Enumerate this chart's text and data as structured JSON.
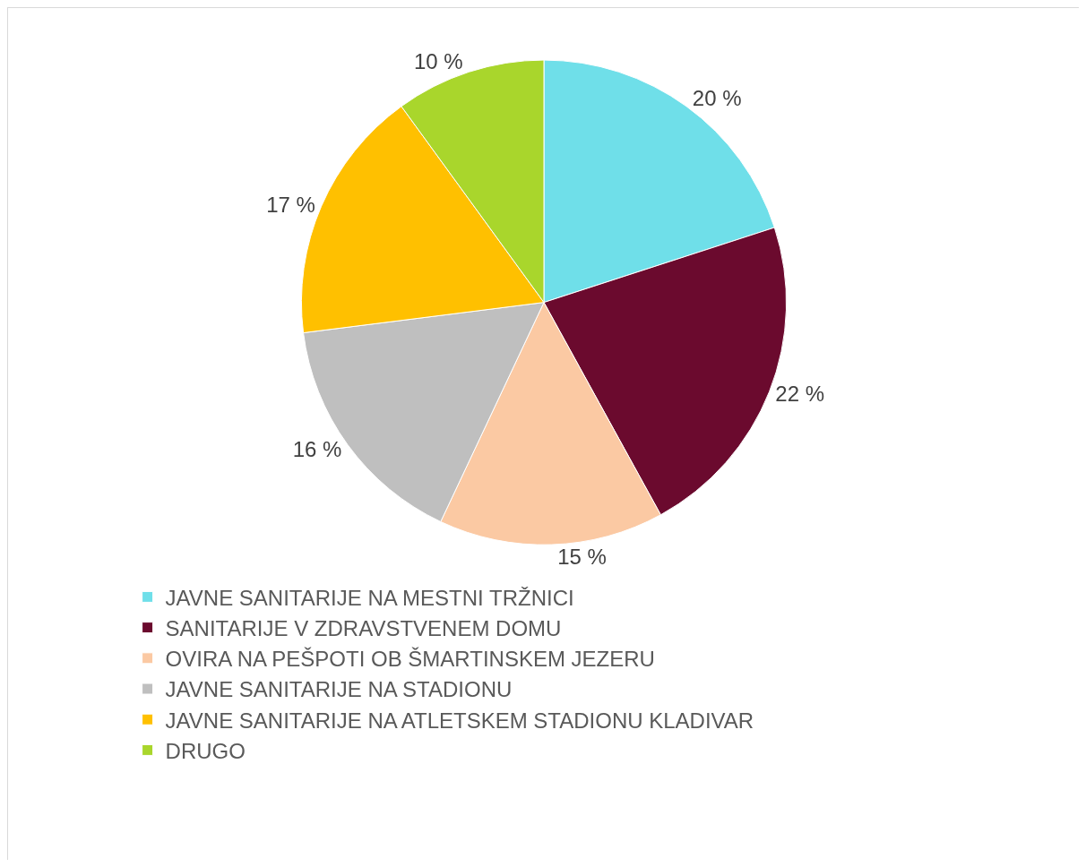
{
  "chart_data": {
    "type": "pie",
    "categories": [
      "JAVNE SANITARIJE NA MESTNI TRŽNICI",
      "SANITARIJE V ZDRAVSTVENEM DOMU",
      "OVIRA NA PEŠPOTI OB ŠMARTINSKEM JEZERU",
      "JAVNE SANITARIJE NA STADIONU",
      "JAVNE SANITARIJE NA ATLETSKEM STADIONU KLADIVAR",
      "DRUGO"
    ],
    "values": [
      20,
      22,
      15,
      16,
      17,
      10
    ],
    "value_labels": [
      "20 %",
      "22 %",
      "15 %",
      "16 %",
      "17 %",
      "10 %"
    ],
    "colors": [
      "#6fdfe9",
      "#6b0a2e",
      "#fbc9a3",
      "#bfbfbf",
      "#ffc000",
      "#a9d62c"
    ],
    "legend": "bottom"
  }
}
